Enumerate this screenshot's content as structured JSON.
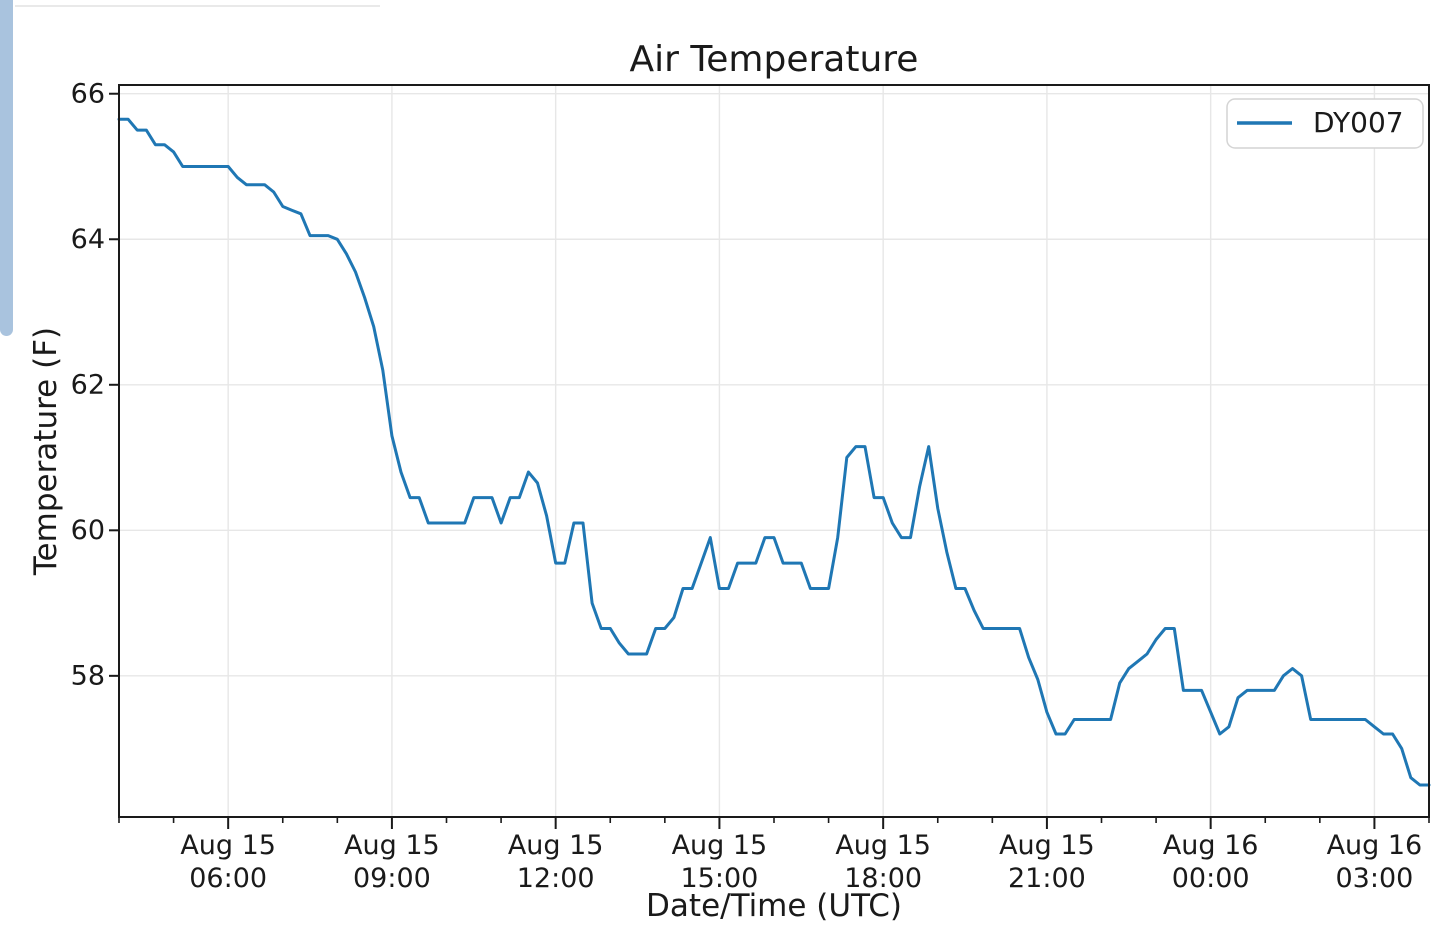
{
  "scrollbar": {
    "color": "#a9c3de"
  },
  "chart_data": {
    "type": "line",
    "title": "Air Temperature",
    "xlabel": "Date/Time (UTC)",
    "ylabel": "Temperature (F)",
    "grid": true,
    "legend": {
      "position": "upper right",
      "entries": [
        "DY007"
      ]
    },
    "y_ticks": [
      66,
      64,
      62,
      60,
      58
    ],
    "ylim": [
      56.06,
      66.12
    ],
    "xlim_hours": 24,
    "x_axis_start": "Aug 15 04:00",
    "x_major_hours": [
      2,
      5,
      8,
      11,
      14,
      17,
      20,
      23
    ],
    "x_minor_every_hours": 1,
    "x_tick_labels": [
      [
        "Aug 15",
        "06:00"
      ],
      [
        "Aug 15",
        "09:00"
      ],
      [
        "Aug 15",
        "12:00"
      ],
      [
        "Aug 15",
        "15:00"
      ],
      [
        "Aug 15",
        "18:00"
      ],
      [
        "Aug 15",
        "21:00"
      ],
      [
        "Aug 16",
        "00:00"
      ],
      [
        "Aug 16",
        "03:00"
      ]
    ],
    "series": [
      {
        "name": "DY007",
        "color": "#1f77b4",
        "start": "Aug 15 04:00",
        "interval_minutes": 10,
        "values": [
          65.65,
          65.65,
          65.5,
          65.5,
          65.3,
          65.3,
          65.2,
          65.0,
          65.0,
          65.0,
          65.0,
          65.0,
          65.0,
          64.85,
          64.75,
          64.75,
          64.75,
          64.65,
          64.45,
          64.4,
          64.35,
          64.05,
          64.05,
          64.05,
          64.0,
          63.8,
          63.55,
          63.2,
          62.8,
          62.2,
          61.3,
          60.8,
          60.45,
          60.45,
          60.1,
          60.1,
          60.1,
          60.1,
          60.1,
          60.45,
          60.45,
          60.45,
          60.1,
          60.45,
          60.45,
          60.8,
          60.65,
          60.2,
          59.55,
          59.55,
          60.1,
          60.1,
          59.0,
          58.65,
          58.65,
          58.45,
          58.3,
          58.3,
          58.3,
          58.65,
          58.65,
          58.8,
          59.2,
          59.2,
          59.55,
          59.9,
          59.2,
          59.2,
          59.55,
          59.55,
          59.55,
          59.9,
          59.9,
          59.55,
          59.55,
          59.55,
          59.2,
          59.2,
          59.2,
          59.9,
          61.0,
          61.15,
          61.15,
          60.45,
          60.45,
          60.1,
          59.9,
          59.9,
          60.6,
          61.15,
          60.3,
          59.7,
          59.2,
          59.2,
          58.9,
          58.65,
          58.65,
          58.65,
          58.65,
          58.65,
          58.25,
          57.95,
          57.5,
          57.2,
          57.2,
          57.4,
          57.4,
          57.4,
          57.4,
          57.4,
          57.9,
          58.1,
          58.2,
          58.3,
          58.5,
          58.65,
          58.65,
          57.8,
          57.8,
          57.8,
          57.5,
          57.2,
          57.3,
          57.7,
          57.8,
          57.8,
          57.8,
          57.8,
          58.0,
          58.1,
          58.0,
          57.4,
          57.4,
          57.4,
          57.4,
          57.4,
          57.4,
          57.4,
          57.3,
          57.2,
          57.2,
          57.0,
          56.6,
          56.5,
          56.5
        ]
      }
    ]
  }
}
